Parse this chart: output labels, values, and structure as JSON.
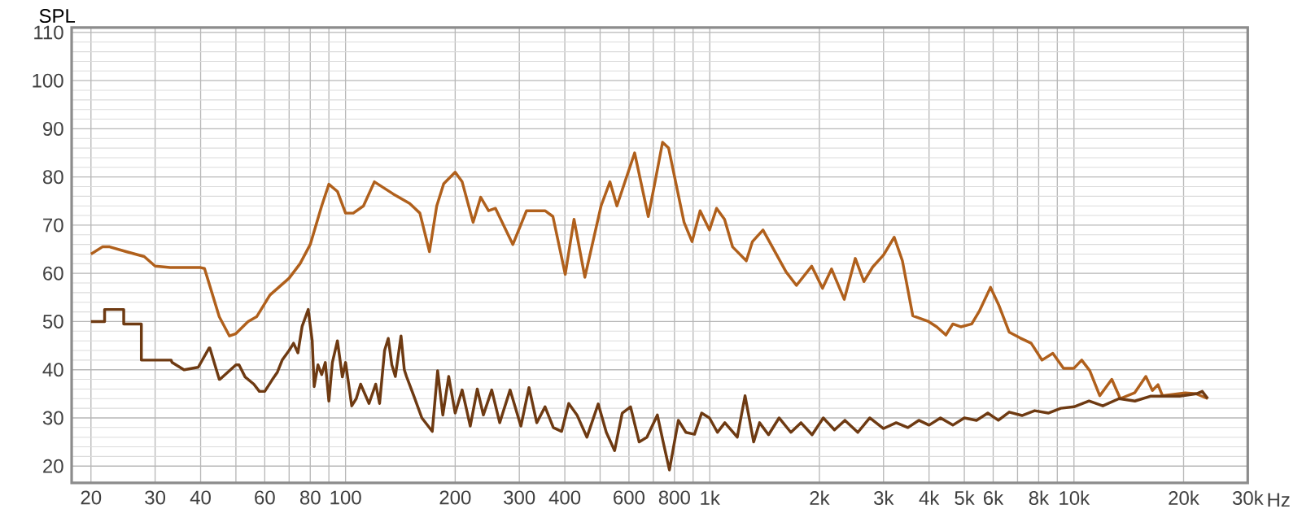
{
  "chart_data": {
    "type": "line",
    "ylabel": "SPL",
    "xlabel": "Hz",
    "log": "x",
    "grid": true,
    "line_style": "solid",
    "marker": "none",
    "xlim": [
      17.7,
      30000
    ],
    "ylim": [
      16.5,
      111
    ],
    "xticks": [
      20,
      30,
      40,
      {
        "value": 50,
        "label": null
      },
      60,
      {
        "value": 70,
        "label": null
      },
      80,
      {
        "value": 90,
        "label": null
      },
      100,
      200,
      300,
      400,
      {
        "value": 500,
        "label": null
      },
      600,
      {
        "value": 700,
        "label": null
      },
      800,
      {
        "value": 900,
        "label": null
      },
      {
        "value": 1000,
        "label": "1k"
      },
      {
        "value": 2000,
        "label": "2k"
      },
      {
        "value": 3000,
        "label": "3k"
      },
      {
        "value": 4000,
        "label": "4k"
      },
      {
        "value": 5000,
        "label": "5k"
      },
      {
        "value": 6000,
        "label": "6k"
      },
      {
        "value": 7000,
        "label": null
      },
      {
        "value": 8000,
        "label": "8k"
      },
      {
        "value": 9000,
        "label": null
      },
      {
        "value": 10000,
        "label": "10k"
      },
      {
        "value": 20000,
        "label": "20k"
      },
      {
        "value": 30000,
        "label": "30k"
      }
    ],
    "yticks": [
      20,
      30,
      40,
      50,
      60,
      70,
      80,
      90,
      100,
      110
    ],
    "series": [
      {
        "color": "#b0601c",
        "x": [
          20,
          21.5,
          22.5,
          25,
          28,
          30,
          33,
          40,
          41,
          45,
          48,
          50,
          54,
          57,
          62,
          70,
          75,
          80,
          86,
          90,
          95,
          100,
          105,
          112,
          120,
          135,
          150,
          160,
          170,
          178,
          186,
          200,
          209,
          224,
          235,
          247,
          258,
          288,
          314,
          353,
          371,
          401,
          424,
          454,
          503,
          532,
          556,
          622,
          678,
          706,
          742,
          771,
          850,
          894,
          941,
          998,
          1044,
          1098,
          1155,
          1260,
          1310,
          1400,
          1620,
          1730,
          1905,
          2040,
          2160,
          2340,
          2510,
          2650,
          2800,
          3000,
          3210,
          3380,
          3610,
          3990,
          4200,
          4450,
          4650,
          4890,
          5240,
          5510,
          5900,
          6210,
          6640,
          7110,
          7630,
          8170,
          8750,
          9360,
          10000,
          10500,
          11050,
          11770,
          12700,
          13400,
          14670,
          15750,
          16420,
          17010,
          17500,
          20190,
          21680,
          23300
        ],
        "values": [
          64,
          65.5,
          65.5,
          64.5,
          63.5,
          61.5,
          61.2,
          61.2,
          61,
          51,
          47,
          47.5,
          50,
          51,
          55.5,
          59,
          62,
          66,
          74,
          78.5,
          77,
          72.5,
          72.5,
          74,
          79,
          76.5,
          74.5,
          72.5,
          64.5,
          74,
          78.6,
          81,
          79,
          70.6,
          75.8,
          73,
          73.5,
          66,
          73,
          73,
          71.8,
          59.8,
          71.2,
          59.2,
          74,
          79,
          74,
          85,
          71.8,
          78.6,
          87.2,
          86,
          70.6,
          66.6,
          73,
          69,
          73.5,
          71.2,
          65.5,
          62.6,
          66.6,
          69,
          60.3,
          57.5,
          61.5,
          56.9,
          60.9,
          54.6,
          63.1,
          58.3,
          61.3,
          63.8,
          67.5,
          62.6,
          51.2,
          50,
          48.9,
          47.2,
          49.5,
          48.9,
          49.5,
          52.3,
          57.1,
          53.5,
          47.8,
          46.6,
          45.5,
          42,
          43.4,
          40.3,
          40.3,
          42,
          39.8,
          34.6,
          38,
          34,
          35.2,
          38.6,
          35.7,
          36.9,
          34.6,
          35.2,
          35,
          34
        ]
      },
      {
        "color": "#6e3a12",
        "x": [
          20,
          21.8,
          21.8,
          24.6,
          24.6,
          27.5,
          27.5,
          33.2,
          33.4,
          36,
          36.1,
          39.3,
          39.4,
          42.2,
          42.4,
          45,
          45.2,
          50,
          51,
          53,
          56,
          58,
          60,
          63,
          65,
          67,
          70,
          72,
          74,
          76,
          79,
          81,
          82,
          84,
          86,
          88,
          90,
          92,
          95,
          98,
          100,
          104,
          107,
          110,
          116,
          121,
          124,
          128,
          131,
          134,
          137,
          142,
          145,
          147,
          155,
          162,
          173,
          179,
          185,
          192,
          200,
          209,
          220,
          230,
          239,
          252,
          265,
          283,
          303,
          319,
          335,
          353,
          372,
          392,
          410,
          432,
          460,
          494,
          520,
          548,
          575,
          606,
          640,
          672,
          718,
          745,
          775,
          820,
          860,
          908,
          950,
          998,
          1050,
          1100,
          1190,
          1250,
          1320,
          1370,
          1450,
          1550,
          1670,
          1780,
          1910,
          2050,
          2200,
          2350,
          2550,
          2750,
          3000,
          3250,
          3500,
          3750,
          4000,
          4300,
          4650,
          5000,
          5400,
          5800,
          6200,
          6640,
          7200,
          7800,
          8500,
          9200,
          10000,
          11000,
          12000,
          13300,
          14700,
          16200,
          18000,
          19500,
          21680,
          22500,
          23300
        ],
        "values": [
          50,
          50,
          52.5,
          52.5,
          49.5,
          49.5,
          42,
          42,
          41.5,
          40,
          40,
          40.5,
          40.5,
          44.5,
          44.5,
          38,
          38,
          41,
          41,
          38.5,
          37,
          35.5,
          35.5,
          38,
          39.5,
          42,
          44,
          45.5,
          43.5,
          49,
          52.5,
          46,
          36.5,
          41,
          39,
          41.5,
          33.5,
          41.5,
          46,
          38.5,
          41.5,
          32.5,
          34,
          37,
          33,
          37,
          33,
          44,
          46.5,
          41,
          38.6,
          47,
          40,
          38.6,
          34,
          30,
          27.2,
          39.8,
          30.6,
          38.6,
          31,
          35.8,
          28.3,
          36,
          30.6,
          35.8,
          29,
          35.8,
          28.3,
          36.3,
          29,
          32.3,
          28,
          27.2,
          33,
          30.6,
          26,
          32.9,
          27,
          23.2,
          31,
          32.3,
          25,
          26,
          30.6,
          25,
          19.2,
          29.5,
          27,
          26.6,
          31,
          30,
          27,
          29,
          26,
          34.6,
          25,
          29,
          26.5,
          30,
          27,
          29,
          26.5,
          30,
          27.5,
          29.5,
          27,
          30,
          27.8,
          29,
          28,
          29.5,
          28.5,
          30,
          28.5,
          30,
          29.5,
          31,
          29.5,
          31.2,
          30.5,
          31.5,
          31,
          32,
          32.3,
          33.5,
          32.5,
          34,
          33.5,
          34.5,
          34.5,
          34.5,
          35,
          35.5,
          34
        ]
      }
    ]
  }
}
